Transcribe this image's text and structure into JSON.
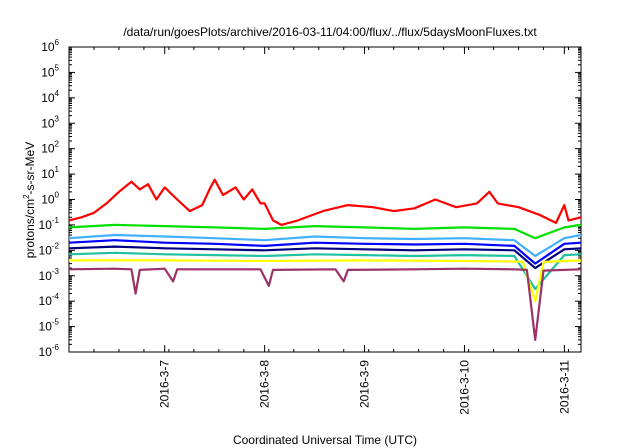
{
  "chart_data": {
    "type": "line",
    "title": "/data/run/goesPlots/archive/2016-03-11/04:00/flux/../flux/5daysMoonFluxes.txt",
    "xlabel": "Coordinated Universal Time (UTC)",
    "ylabel": {
      "prefix": "protons/cm",
      "sup": "2",
      "suffix": "-s-sr-MeV"
    },
    "x_range": [
      "2016-03-06T01:00",
      "2016-03-11T04:00"
    ],
    "x_ticks": [
      "2016-3-7",
      "2016-3-8",
      "2016-3-9",
      "2016-3-10",
      "2016-3-11"
    ],
    "y_scale": "log",
    "ylim": [
      1e-06,
      1000000.0
    ],
    "y_ticks": [
      {
        "base": "10",
        "exp": "-6"
      },
      {
        "base": "10",
        "exp": "-5"
      },
      {
        "base": "10",
        "exp": "-4"
      },
      {
        "base": "10",
        "exp": "-3"
      },
      {
        "base": "10",
        "exp": "-2"
      },
      {
        "base": "10",
        "exp": "-1"
      },
      {
        "base": "10",
        "exp": "0"
      },
      {
        "base": "10",
        "exp": "1"
      },
      {
        "base": "10",
        "exp": "2"
      },
      {
        "base": "10",
        "exp": "3"
      },
      {
        "base": "10",
        "exp": "4"
      },
      {
        "base": "10",
        "exp": "5"
      },
      {
        "base": "10",
        "exp": "6"
      }
    ],
    "grid": false,
    "legend": "none",
    "series": [
      {
        "color": "#ff0000",
        "points": [
          [
            "2016-03-06T01:00",
            0.15
          ],
          [
            "2016-03-06T04:00",
            0.2
          ],
          [
            "2016-03-06T07:00",
            0.3
          ],
          [
            "2016-03-06T10:00",
            0.7
          ],
          [
            "2016-03-06T13:00",
            2.0
          ],
          [
            "2016-03-06T16:00",
            5.0
          ],
          [
            "2016-03-06T18:00",
            2.5
          ],
          [
            "2016-03-06T20:00",
            4.0
          ],
          [
            "2016-03-06T22:00",
            1.0
          ],
          [
            "2016-03-07T00:00",
            3.0
          ],
          [
            "2016-03-07T03:00",
            1.0
          ],
          [
            "2016-03-07T06:00",
            0.35
          ],
          [
            "2016-03-07T09:00",
            0.6
          ],
          [
            "2016-03-07T11:00",
            3.0
          ],
          [
            "2016-03-07T12:00",
            6.0
          ],
          [
            "2016-03-07T14:00",
            1.5
          ],
          [
            "2016-03-07T17:00",
            3.0
          ],
          [
            "2016-03-07T19:00",
            1.0
          ],
          [
            "2016-03-07T21:00",
            2.5
          ],
          [
            "2016-03-07T23:00",
            0.7
          ],
          [
            "2016-03-08T00:00",
            0.7
          ],
          [
            "2016-03-08T02:00",
            0.15
          ],
          [
            "2016-03-08T04:00",
            0.1
          ],
          [
            "2016-03-08T08:00",
            0.15
          ],
          [
            "2016-03-08T14:00",
            0.35
          ],
          [
            "2016-03-08T20:00",
            0.6
          ],
          [
            "2016-03-09T02:00",
            0.5
          ],
          [
            "2016-03-09T07:00",
            0.35
          ],
          [
            "2016-03-09T12:00",
            0.45
          ],
          [
            "2016-03-09T17:00",
            1.0
          ],
          [
            "2016-03-09T22:00",
            0.5
          ],
          [
            "2016-03-10T03:00",
            0.7
          ],
          [
            "2016-03-10T06:00",
            2.0
          ],
          [
            "2016-03-10T08:00",
            0.7
          ],
          [
            "2016-03-10T13:00",
            0.5
          ],
          [
            "2016-03-10T18:00",
            0.25
          ],
          [
            "2016-03-10T22:00",
            0.12
          ],
          [
            "2016-03-11T00:00",
            0.6
          ],
          [
            "2016-03-11T01:00",
            0.15
          ],
          [
            "2016-03-11T04:00",
            0.2
          ]
        ]
      },
      {
        "color": "#00e000",
        "points": [
          [
            "2016-03-06T01:00",
            0.08
          ],
          [
            "2016-03-06T12:00",
            0.1
          ],
          [
            "2016-03-07T00:00",
            0.09
          ],
          [
            "2016-03-07T12:00",
            0.08
          ],
          [
            "2016-03-08T00:00",
            0.07
          ],
          [
            "2016-03-08T12:00",
            0.09
          ],
          [
            "2016-03-09T00:00",
            0.08
          ],
          [
            "2016-03-09T12:00",
            0.07
          ],
          [
            "2016-03-10T00:00",
            0.08
          ],
          [
            "2016-03-10T12:00",
            0.07
          ],
          [
            "2016-03-10T17:00",
            0.03
          ],
          [
            "2016-03-11T00:00",
            0.08
          ],
          [
            "2016-03-11T04:00",
            0.1
          ]
        ]
      },
      {
        "color": "#40b0ff",
        "points": [
          [
            "2016-03-06T01:00",
            0.03
          ],
          [
            "2016-03-06T12:00",
            0.04
          ],
          [
            "2016-03-07T00:00",
            0.035
          ],
          [
            "2016-03-07T12:00",
            0.03
          ],
          [
            "2016-03-08T00:00",
            0.025
          ],
          [
            "2016-03-08T12:00",
            0.035
          ],
          [
            "2016-03-09T00:00",
            0.03
          ],
          [
            "2016-03-09T12:00",
            0.028
          ],
          [
            "2016-03-10T00:00",
            0.03
          ],
          [
            "2016-03-10T12:00",
            0.025
          ],
          [
            "2016-03-10T17:00",
            0.006
          ],
          [
            "2016-03-11T00:00",
            0.03
          ],
          [
            "2016-03-11T04:00",
            0.04
          ]
        ]
      },
      {
        "color": "#0000ff",
        "points": [
          [
            "2016-03-06T01:00",
            0.02
          ],
          [
            "2016-03-06T12:00",
            0.025
          ],
          [
            "2016-03-07T00:00",
            0.02
          ],
          [
            "2016-03-07T12:00",
            0.018
          ],
          [
            "2016-03-08T00:00",
            0.015
          ],
          [
            "2016-03-08T12:00",
            0.02
          ],
          [
            "2016-03-09T00:00",
            0.018
          ],
          [
            "2016-03-09T12:00",
            0.017
          ],
          [
            "2016-03-10T00:00",
            0.018
          ],
          [
            "2016-03-10T12:00",
            0.015
          ],
          [
            "2016-03-10T17:00",
            0.003
          ],
          [
            "2016-03-11T00:00",
            0.018
          ],
          [
            "2016-03-11T04:00",
            0.02
          ]
        ]
      },
      {
        "color": "#000080",
        "points": [
          [
            "2016-03-06T01:00",
            0.012
          ],
          [
            "2016-03-06T12:00",
            0.014
          ],
          [
            "2016-03-07T00:00",
            0.012
          ],
          [
            "2016-03-07T12:00",
            0.011
          ],
          [
            "2016-03-08T00:00",
            0.01
          ],
          [
            "2016-03-08T12:00",
            0.012
          ],
          [
            "2016-03-09T00:00",
            0.011
          ],
          [
            "2016-03-09T12:00",
            0.01
          ],
          [
            "2016-03-10T00:00",
            0.011
          ],
          [
            "2016-03-10T12:00",
            0.01
          ],
          [
            "2016-03-10T17:00",
            0.002
          ],
          [
            "2016-03-11T00:00",
            0.011
          ],
          [
            "2016-03-11T04:00",
            0.012
          ]
        ]
      },
      {
        "color": "#20c0a0",
        "points": [
          [
            "2016-03-06T01:00",
            0.007
          ],
          [
            "2016-03-06T12:00",
            0.008
          ],
          [
            "2016-03-07T00:00",
            0.007
          ],
          [
            "2016-03-07T12:00",
            0.0065
          ],
          [
            "2016-03-08T00:00",
            0.006
          ],
          [
            "2016-03-08T12:00",
            0.007
          ],
          [
            "2016-03-09T00:00",
            0.0065
          ],
          [
            "2016-03-09T12:00",
            0.006
          ],
          [
            "2016-03-10T00:00",
            0.0065
          ],
          [
            "2016-03-10T12:00",
            0.006
          ],
          [
            "2016-03-10T17:00",
            0.0003
          ],
          [
            "2016-03-11T00:00",
            0.0065
          ],
          [
            "2016-03-11T04:00",
            0.007
          ]
        ]
      },
      {
        "color": "#ffff00",
        "points": [
          [
            "2016-03-06T01:00",
            0.004
          ],
          [
            "2016-03-07T00:00",
            0.004
          ],
          [
            "2016-03-08T00:00",
            0.0038
          ],
          [
            "2016-03-09T00:00",
            0.004
          ],
          [
            "2016-03-10T00:00",
            0.0038
          ],
          [
            "2016-03-10T14:00",
            0.0036
          ],
          [
            "2016-03-10T17:00",
            0.0001
          ],
          [
            "2016-03-10T19:00",
            0.0035
          ],
          [
            "2016-03-11T04:00",
            0.004
          ]
        ]
      },
      {
        "color": "#993366",
        "points": [
          [
            "2016-03-06T01:00",
            0.0018
          ],
          [
            "2016-03-06T12:00",
            0.0019
          ],
          [
            "2016-03-06T16:00",
            0.0018
          ],
          [
            "2016-03-06T17:00",
            0.0002
          ],
          [
            "2016-03-06T18:00",
            0.0017
          ],
          [
            "2016-03-07T00:00",
            0.0019
          ],
          [
            "2016-03-07T02:00",
            0.0006
          ],
          [
            "2016-03-07T03:00",
            0.0018
          ],
          [
            "2016-03-07T23:00",
            0.0018
          ],
          [
            "2016-03-08T01:00",
            0.0004
          ],
          [
            "2016-03-08T02:00",
            0.0017
          ],
          [
            "2016-03-08T17:00",
            0.0018
          ],
          [
            "2016-03-08T19:00",
            0.0006
          ],
          [
            "2016-03-08T20:00",
            0.0017
          ],
          [
            "2016-03-09T12:00",
            0.0018
          ],
          [
            "2016-03-10T00:00",
            0.0019
          ],
          [
            "2016-03-10T12:00",
            0.0018
          ],
          [
            "2016-03-10T15:00",
            0.0017
          ],
          [
            "2016-03-10T17:00",
            3e-06
          ],
          [
            "2016-03-10T19:00",
            0.0016
          ],
          [
            "2016-03-11T04:00",
            0.0018
          ]
        ]
      }
    ]
  }
}
